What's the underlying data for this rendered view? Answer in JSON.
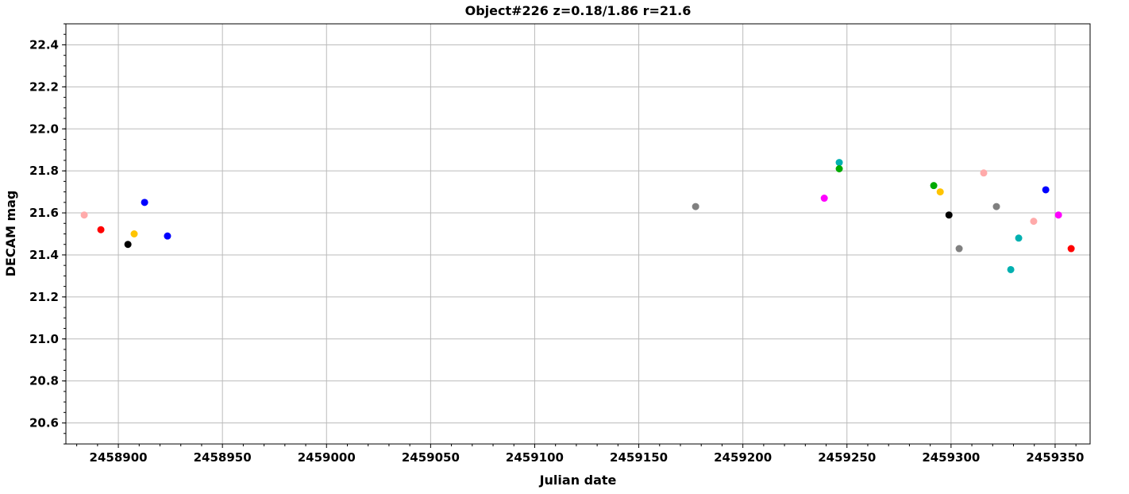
{
  "chart_data": {
    "type": "scatter",
    "title": "Object#226 z=0.18/1.86 r=21.6",
    "xlabel": "Julian date",
    "ylabel": "DECAM mag",
    "xlim": [
      2458874.8,
      2459366.8
    ],
    "ylim": [
      20.5,
      22.5
    ],
    "xticks": [
      2458900,
      2458950,
      2459000,
      2459050,
      2459100,
      2459150,
      2459200,
      2459250,
      2459300,
      2459350
    ],
    "yticks": [
      20.6,
      20.8,
      21.0,
      21.2,
      21.4,
      21.6,
      21.8,
      22.0,
      22.2,
      22.4
    ],
    "grid": true,
    "points": [
      {
        "x": 2458883.6,
        "y": 21.59,
        "color": "#ffaaaa"
      },
      {
        "x": 2458891.6,
        "y": 21.52,
        "color": "#ff0000"
      },
      {
        "x": 2458904.6,
        "y": 21.45,
        "color": "#000000"
      },
      {
        "x": 2458907.6,
        "y": 21.5,
        "color": "#ffc400"
      },
      {
        "x": 2458912.6,
        "y": 21.65,
        "color": "#0000ff"
      },
      {
        "x": 2458923.6,
        "y": 21.49,
        "color": "#0000ff"
      },
      {
        "x": 2459177.3,
        "y": 21.63,
        "color": "#808080"
      },
      {
        "x": 2459239.1,
        "y": 21.67,
        "color": "#ff00ff"
      },
      {
        "x": 2459246.3,
        "y": 21.84,
        "color": "#00b0b0"
      },
      {
        "x": 2459246.3,
        "y": 21.81,
        "color": "#00aa00"
      },
      {
        "x": 2459291.7,
        "y": 21.73,
        "color": "#00aa00"
      },
      {
        "x": 2459294.8,
        "y": 21.7,
        "color": "#ffc400"
      },
      {
        "x": 2459299.0,
        "y": 21.59,
        "color": "#000000"
      },
      {
        "x": 2459303.9,
        "y": 21.43,
        "color": "#808080"
      },
      {
        "x": 2459315.7,
        "y": 21.79,
        "color": "#ffaaaa"
      },
      {
        "x": 2459321.8,
        "y": 21.63,
        "color": "#808080"
      },
      {
        "x": 2459328.7,
        "y": 21.33,
        "color": "#00b0b0"
      },
      {
        "x": 2459332.5,
        "y": 21.48,
        "color": "#00b0b0"
      },
      {
        "x": 2459339.7,
        "y": 21.56,
        "color": "#ffaaaa"
      },
      {
        "x": 2459345.5,
        "y": 21.71,
        "color": "#0000ff"
      },
      {
        "x": 2459351.6,
        "y": 21.59,
        "color": "#ff00ff"
      },
      {
        "x": 2459357.7,
        "y": 21.43,
        "color": "#ff0000"
      }
    ]
  }
}
